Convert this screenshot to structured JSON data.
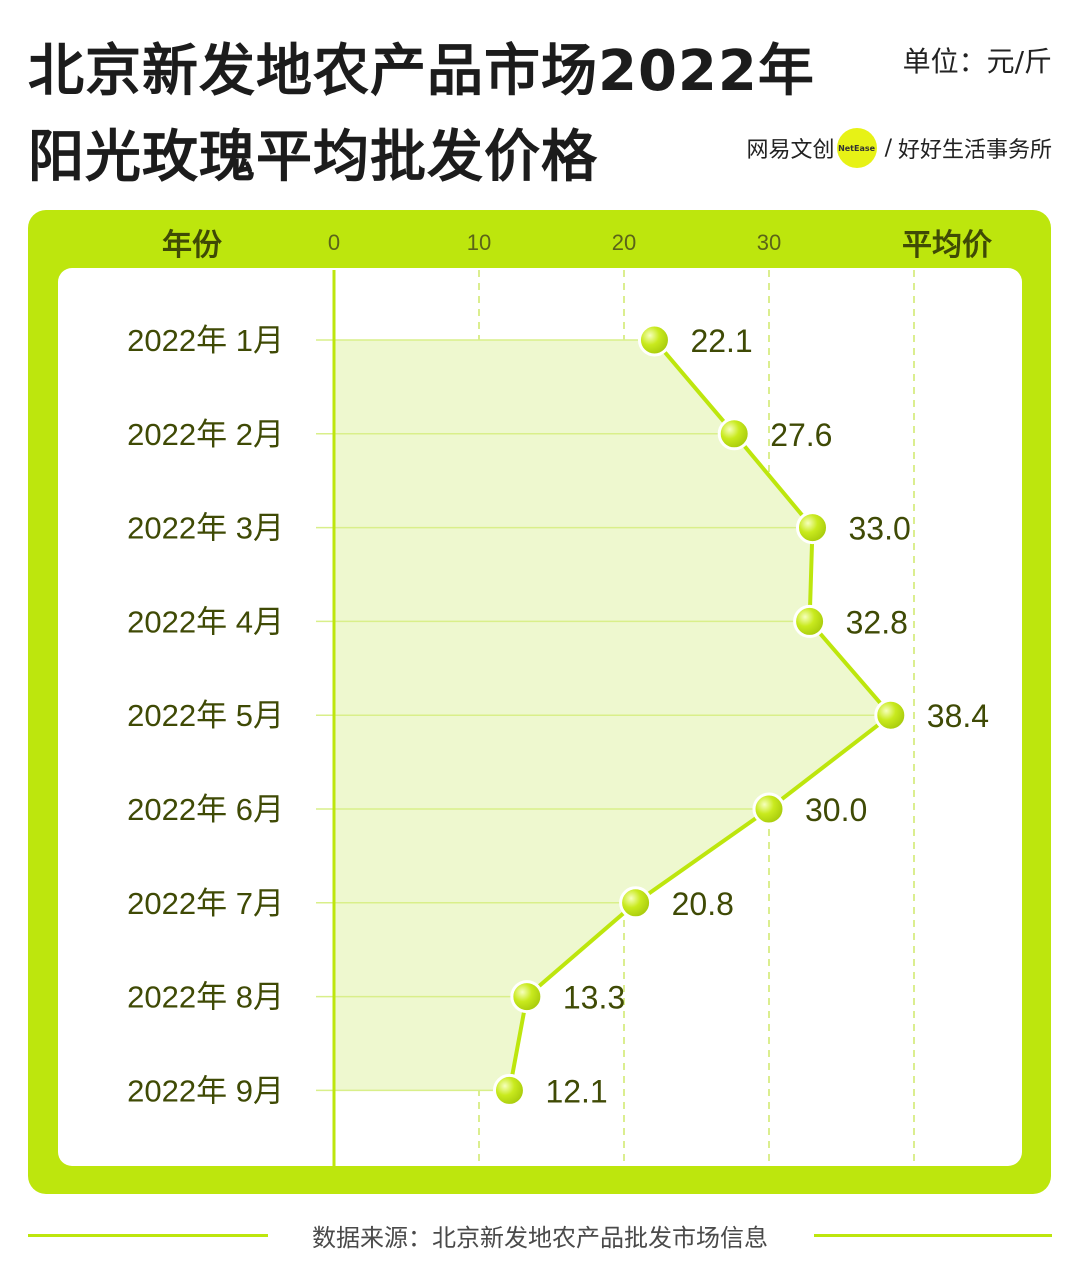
{
  "header": {
    "title_line1": "北京新发地农产品市场2022年",
    "title_line2": "阳光玫瑰平均批发价格",
    "unit": "单位：元/斤",
    "brand_left": "网易文创",
    "brand_badge": "NetEase",
    "brand_sep": "/",
    "brand_right": "好好生活事务所"
  },
  "chart_data": {
    "type": "line",
    "orientation": "horizontal",
    "column_header_category": "年份",
    "column_header_value": "平均价",
    "categories": [
      "2022年 1月",
      "2022年 2月",
      "2022年 3月",
      "2022年 4月",
      "2022年 5月",
      "2022年 6月",
      "2022年 7月",
      "2022年 8月",
      "2022年 9月"
    ],
    "values": [
      22.1,
      27.6,
      33.0,
      32.8,
      38.4,
      30.0,
      20.8,
      13.3,
      12.1
    ],
    "value_labels": [
      "22.1",
      "27.6",
      "33.0",
      "32.8",
      "38.4",
      "30.0",
      "20.8",
      "13.3",
      "12.1"
    ],
    "xticks": [
      0,
      10,
      20,
      30
    ],
    "xlim": [
      0,
      40
    ],
    "grid": true,
    "colors": {
      "accent": "#bde60d",
      "fill": "#eef8cf",
      "text": "#3f4a05",
      "marker": "#c3e61b"
    }
  },
  "footer": {
    "source": "数据来源：北京新发地农产品批发市场信息"
  }
}
